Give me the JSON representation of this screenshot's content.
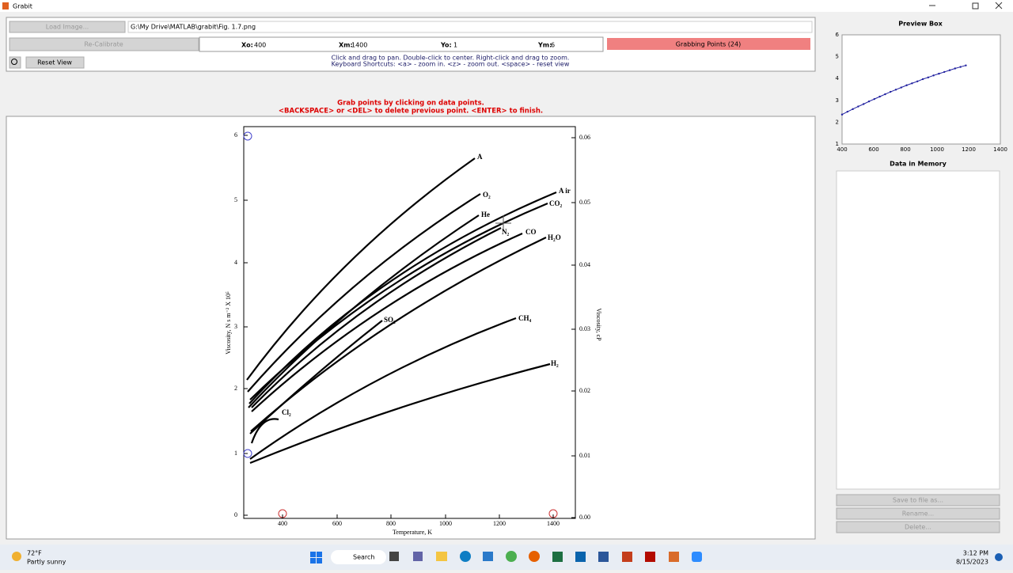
{
  "window": {
    "title": "Grabit"
  },
  "toolbar": {
    "load_button": "Load Image...",
    "file_path": "G:\\My Drive\\MATLAB\\grabit\\Fig. 1.7.png",
    "calibrate_button": "Re-Calibrate",
    "fields": [
      {
        "label": "Xo:",
        "value": "400"
      },
      {
        "label": "Xm:",
        "value": "1400"
      },
      {
        "label": "Yo:",
        "value": "1"
      },
      {
        "label": "Ym:",
        "value": "6"
      }
    ],
    "grab_button": "Grabbing Points (24)",
    "reset_button": "Reset View",
    "help": [
      "Click and drag to pan. Double-click to center. Right-click and drag to zoom.",
      "Keyboard Shortcuts: <a> - zoom in. <z> - zoom out. <space> - reset view"
    ]
  },
  "instructions": [
    "Grab points by clicking on data points.",
    "<BACKSPACE> or <DEL> to delete previous point. <ENTER> to finish."
  ],
  "image": {
    "left_ticks": [
      "0",
      "1",
      "2",
      "3",
      "4",
      "5",
      "6"
    ],
    "right_ticks": [
      "0.00",
      "0.01",
      "0.02",
      "0.03",
      "0.04",
      "0.05",
      "0.06"
    ],
    "x_ticks": [
      "400",
      "600",
      "800",
      "1000",
      "1200",
      "1400"
    ],
    "y_label": "Viscosity, N s m⁻² X 10⁵",
    "y2_label": "Viscosity, cP",
    "x_label": "Temperature, K",
    "curve_labels": [
      "A",
      "O₂",
      "He",
      "A ir",
      "CO₂",
      "N₂",
      "CO",
      "H₂O",
      "SO₂",
      "Cl₂",
      "CH₄",
      "H₂"
    ]
  },
  "preview": {
    "title": "Preview Box",
    "xlim": [
      400,
      1400
    ],
    "xticks": [
      400,
      600,
      800,
      1000,
      1200,
      1400
    ],
    "ylim": [
      1,
      6
    ],
    "yticks": [
      1,
      2,
      3,
      4,
      5,
      6
    ],
    "color": "#1f1f9f",
    "x": [
      400,
      434,
      468,
      502,
      536,
      570,
      604,
      638,
      672,
      706,
      740,
      774,
      808,
      842,
      876,
      910,
      944,
      978,
      1012,
      1046,
      1080,
      1114,
      1148,
      1182
    ],
    "y": [
      2.35,
      2.48,
      2.6,
      2.72,
      2.83,
      2.95,
      3.06,
      3.17,
      3.28,
      3.39,
      3.49,
      3.59,
      3.69,
      3.78,
      3.87,
      3.97,
      4.05,
      4.14,
      4.22,
      4.3,
      4.38,
      4.46,
      4.53,
      4.6
    ]
  },
  "memory": {
    "title": "Data in Memory",
    "buttons": [
      "Save to file as...",
      "Rename...",
      "Delete..."
    ]
  },
  "taskbar": {
    "temperature": "72°F",
    "weather": "Partly sunny",
    "search": "Search",
    "time": "3:12 PM",
    "date": "8/15/2023"
  }
}
